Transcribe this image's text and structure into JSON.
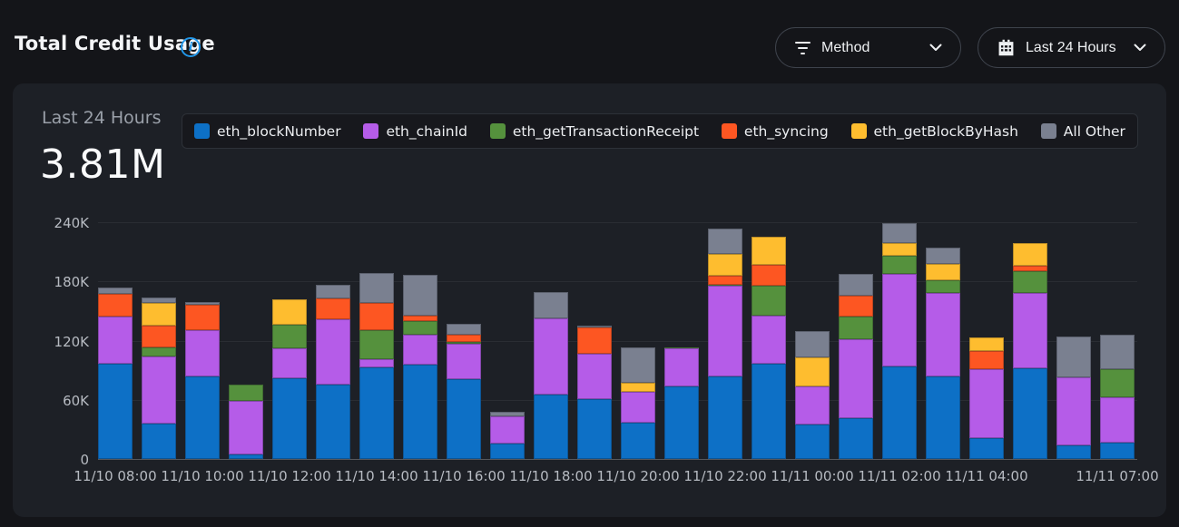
{
  "header": {
    "title": "Total Credit Usage"
  },
  "filters": {
    "method_label": "Method",
    "time_range_label": "Last 24 Hours"
  },
  "summary": {
    "period_label": "Last 24 Hours",
    "total": "3.81M"
  },
  "chart_data": {
    "type": "bar",
    "stacked": true,
    "title": "Total Credit Usage",
    "ylabel": "",
    "xlabel": "",
    "ylim_k": [
      0,
      240
    ],
    "grid": true,
    "legend_position": "top",
    "y_ticks": [
      {
        "value_k": 0,
        "label": "0"
      },
      {
        "value_k": 60,
        "label": "60K"
      },
      {
        "value_k": 120,
        "label": "120K"
      },
      {
        "value_k": 180,
        "label": "180K"
      },
      {
        "value_k": 240,
        "label": "240K"
      }
    ],
    "x_ticks": [
      {
        "bar_index": 0,
        "label": "11/10 08:00"
      },
      {
        "bar_index": 2,
        "label": "11/10 10:00"
      },
      {
        "bar_index": 4,
        "label": "11/10 12:00"
      },
      {
        "bar_index": 6,
        "label": "11/10 14:00"
      },
      {
        "bar_index": 8,
        "label": "11/10 16:00"
      },
      {
        "bar_index": 10,
        "label": "11/10 18:00"
      },
      {
        "bar_index": 12,
        "label": "11/10 20:00"
      },
      {
        "bar_index": 14,
        "label": "11/10 22:00"
      },
      {
        "bar_index": 16,
        "label": "11/11 00:00"
      },
      {
        "bar_index": 18,
        "label": "11/11 02:00"
      },
      {
        "bar_index": 20,
        "label": "11/11 04:00"
      },
      {
        "bar_index": 23,
        "label": "11/11 07:00"
      }
    ],
    "series": [
      {
        "name": "eth_blockNumber",
        "color": "#0d70c6",
        "values_k": [
          97,
          36,
          84,
          5,
          82,
          75,
          93,
          96,
          81,
          16,
          65,
          61,
          37,
          74,
          84,
          97,
          35,
          41,
          94,
          84,
          21,
          92,
          14,
          17
        ]
      },
      {
        "name": "eth_chainId",
        "color": "#b55ce8",
        "values_k": [
          47,
          68,
          47,
          54,
          30,
          67,
          8,
          30,
          36,
          27,
          78,
          46,
          31,
          38,
          92,
          48,
          39,
          80,
          94,
          84,
          70,
          76,
          69,
          46
        ]
      },
      {
        "name": "eth_getTransactionReceipt",
        "color": "#55913d",
        "values_k": [
          0,
          9,
          0,
          16,
          24,
          0,
          30,
          14,
          2,
          0,
          0,
          0,
          0,
          1,
          1,
          31,
          0,
          23,
          18,
          13,
          0,
          22,
          0,
          28
        ]
      },
      {
        "name": "eth_syncing",
        "color": "#fd5622",
        "values_k": [
          23,
          22,
          25,
          0,
          0,
          21,
          27,
          5,
          7,
          0,
          0,
          26,
          0,
          0,
          9,
          21,
          0,
          22,
          0,
          0,
          18,
          6,
          0,
          0
        ]
      },
      {
        "name": "eth_getBlockByHash",
        "color": "#febd2f",
        "values_k": [
          0,
          23,
          0,
          0,
          26,
          0,
          0,
          0,
          0,
          0,
          0,
          0,
          9,
          0,
          22,
          28,
          29,
          0,
          13,
          17,
          14,
          23,
          0,
          0
        ]
      },
      {
        "name": "All Other",
        "color": "#7a8090",
        "values_k": [
          7,
          6,
          3,
          0,
          0,
          14,
          31,
          42,
          11,
          5,
          26,
          2,
          36,
          0,
          26,
          0,
          27,
          22,
          20,
          16,
          0,
          0,
          41,
          35
        ]
      }
    ],
    "bar_count": 24,
    "total_label": "3.81M"
  }
}
